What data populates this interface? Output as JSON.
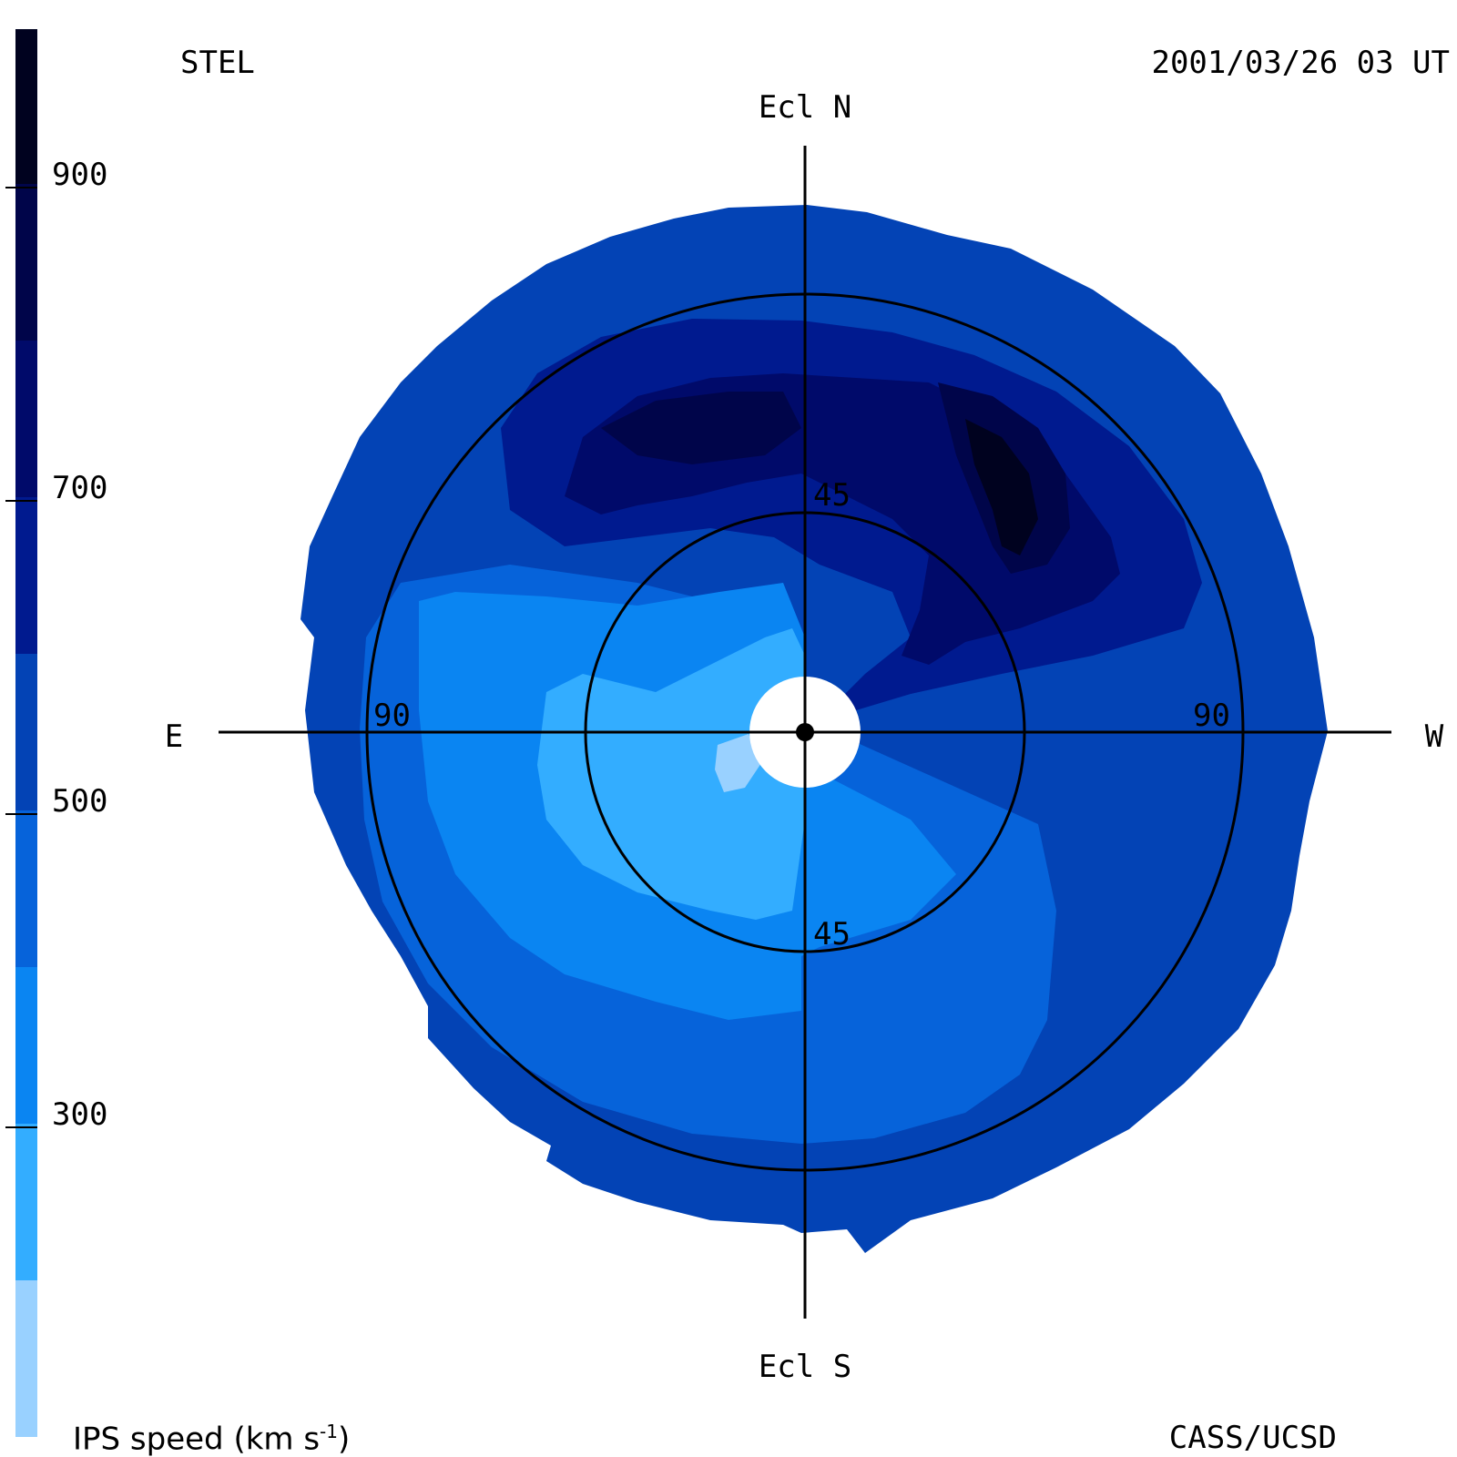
{
  "header": {
    "station": "STEL",
    "timestamp": "2001/03/26 03 UT",
    "credit": "CASS/UCSD"
  },
  "map": {
    "projection": "fisheye sky map, ecliptic orientation",
    "directions": {
      "north": "Ecl N",
      "south": "Ecl S",
      "east": "E",
      "west": "W"
    },
    "elongation_rings": [
      {
        "elongation_deg": 45,
        "labels": [
          "45",
          "45"
        ]
      },
      {
        "elongation_deg": 90,
        "labels": [
          "90",
          "90"
        ]
      }
    ],
    "data_extent_deg": 112,
    "sun_occulter_deg": 11
  },
  "colorbar": {
    "title": "IPS speed (km s",
    "title_sup": "-1",
    "title_close": ")",
    "ticks": [
      "900",
      "700",
      "500",
      "300"
    ],
    "levels": [
      {
        "min": 100,
        "max": 200,
        "color": "#99d1ff"
      },
      {
        "min": 200,
        "max": 300,
        "color": "#33adff"
      },
      {
        "min": 300,
        "max": 400,
        "color": "#0a85f2"
      },
      {
        "min": 400,
        "max": 500,
        "color": "#0663da"
      },
      {
        "min": 500,
        "max": 600,
        "color": "#0343b5"
      },
      {
        "min": 600,
        "max": 700,
        "color": "#001a8f"
      },
      {
        "min": 700,
        "max": 800,
        "color": "#000a6a"
      },
      {
        "min": 800,
        "max": 900,
        "color": "#00054a"
      },
      {
        "min": 900,
        "max": 1000,
        "color": "#00021f"
      }
    ]
  }
}
